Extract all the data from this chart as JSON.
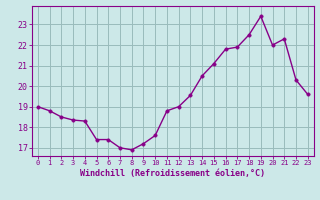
{
  "x": [
    0,
    1,
    2,
    3,
    4,
    5,
    6,
    7,
    8,
    9,
    10,
    11,
    12,
    13,
    14,
    15,
    16,
    17,
    18,
    19,
    20,
    21,
    22,
    23
  ],
  "y": [
    19.0,
    18.8,
    18.5,
    18.35,
    18.3,
    17.4,
    17.4,
    17.0,
    16.9,
    17.2,
    17.6,
    18.8,
    19.0,
    19.55,
    20.5,
    21.1,
    21.8,
    21.9,
    22.5,
    23.4,
    22.0,
    22.3,
    20.3,
    19.6
  ],
  "bg_color": "#cce8e8",
  "line_color": "#880088",
  "marker_color": "#880088",
  "grid_color": "#99bbbb",
  "axis_color": "#880088",
  "xlabel": "Windchill (Refroidissement éolien,°C)",
  "xlabel_color": "#880088",
  "tick_color": "#880088",
  "ylim": [
    16.6,
    23.9
  ],
  "xlim": [
    -0.5,
    23.5
  ],
  "yticks": [
    17,
    18,
    19,
    20,
    21,
    22,
    23
  ],
  "xticks": [
    0,
    1,
    2,
    3,
    4,
    5,
    6,
    7,
    8,
    9,
    10,
    11,
    12,
    13,
    14,
    15,
    16,
    17,
    18,
    19,
    20,
    21,
    22,
    23
  ],
  "line_width": 1.0,
  "marker_size": 2.5
}
